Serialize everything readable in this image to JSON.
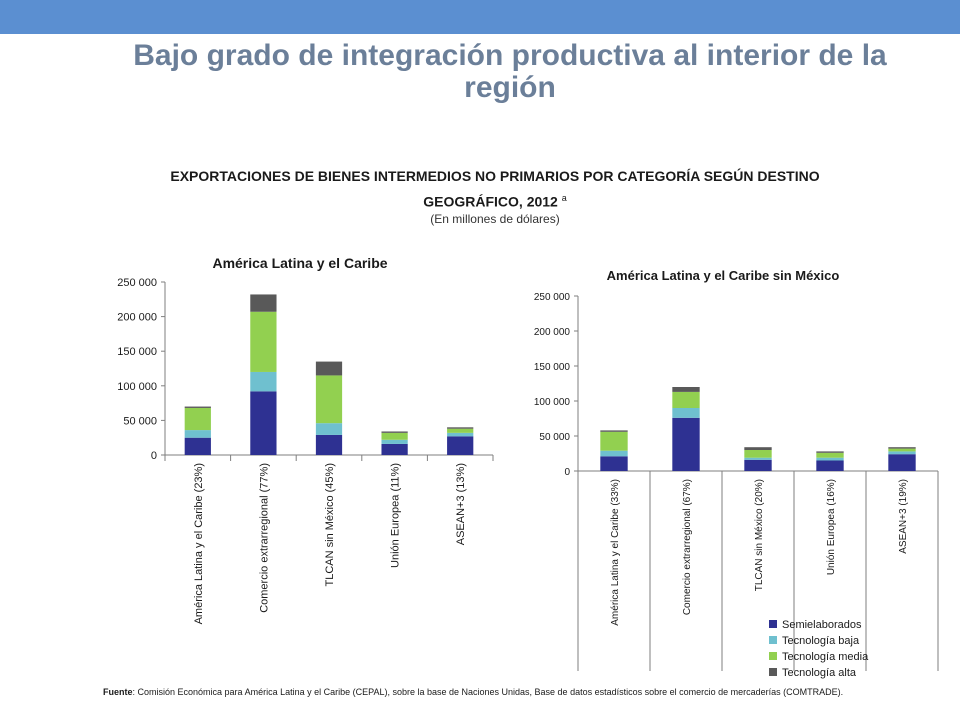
{
  "header": {
    "title": "Bajo grado de integración productiva al interior de la región"
  },
  "section": {
    "heading": "EXPORTACIONES DE BIENES INTERMEDIOS NO PRIMARIOS POR CATEGORÍA SEGÚN DESTINO GEOGRÁFICO, 2012",
    "heading_note": "a",
    "subheading": "(En millones de dólares)"
  },
  "footer": {
    "source_label": "Fuente",
    "source_text": ": Comisión Económica para América Latina y el Caribe (CEPAL), sobre la base de Naciones Unidas, Base de datos estadísticos sobre el comercio de mercaderías (COMTRADE)."
  },
  "colors": {
    "header_bar": "#5b8fd1",
    "title": "#6b7f99",
    "Semielaborados": "#2e3192",
    "Tecnología baja": "#6fc0cf",
    "Tecnología media": "#92d050",
    "Tecnología alta": "#595959"
  },
  "chart_data": [
    {
      "type": "bar",
      "stacked": true,
      "title": "América Latina y el Caribe",
      "xlabel": "",
      "ylabel": "",
      "ylim": [
        0,
        250000
      ],
      "yticks": [
        0,
        50000,
        100000,
        150000,
        200000,
        250000
      ],
      "ytick_labels": [
        "0",
        "50 000",
        "100 000",
        "150 000",
        "200 000",
        "250 000"
      ],
      "grid": false,
      "legend": "none",
      "categories": [
        "América Latina y el Caribe (23%)",
        "Comercio extrarregional (77%)",
        "TLCAN sin México (45%)",
        "Unión Europea (11%)",
        "ASEAN+3 (13%)"
      ],
      "series": [
        {
          "name": "Semielaborados",
          "values": [
            25000,
            92000,
            29000,
            16000,
            27000
          ]
        },
        {
          "name": "Tecnología baja",
          "values": [
            11000,
            28000,
            17000,
            6000,
            5000
          ]
        },
        {
          "name": "Tecnología media",
          "values": [
            32000,
            87000,
            69000,
            10000,
            6000
          ]
        },
        {
          "name": "Tecnología alta",
          "values": [
            2000,
            25000,
            20000,
            2000,
            2000
          ]
        }
      ]
    },
    {
      "type": "bar",
      "stacked": true,
      "title": "América Latina y el Caribe sin México",
      "xlabel": "",
      "ylabel": "",
      "ylim": [
        0,
        250000
      ],
      "yticks": [
        0,
        50000,
        100000,
        150000,
        200000,
        250000
      ],
      "ytick_labels": [
        "0",
        "50 000",
        "100 000",
        "150 000",
        "200 000",
        "250 000"
      ],
      "grid": false,
      "legend": "bottom-right",
      "categories": [
        "América Latina y el Caribe (33%)",
        "Comercio extrarregional (67%)",
        "TLCAN sin México (20%)",
        "Unión Europea (16%)",
        "ASEAN+3 (19%)"
      ],
      "series": [
        {
          "name": "Semielaborados",
          "values": [
            21000,
            76000,
            16000,
            15000,
            24000
          ]
        },
        {
          "name": "Tecnología baja",
          "values": [
            8000,
            14000,
            3000,
            4000,
            4000
          ]
        },
        {
          "name": "Tecnología media",
          "values": [
            27000,
            23000,
            11000,
            7000,
            4000
          ]
        },
        {
          "name": "Tecnología alta",
          "values": [
            2000,
            7000,
            4000,
            2000,
            2000
          ]
        }
      ]
    }
  ]
}
